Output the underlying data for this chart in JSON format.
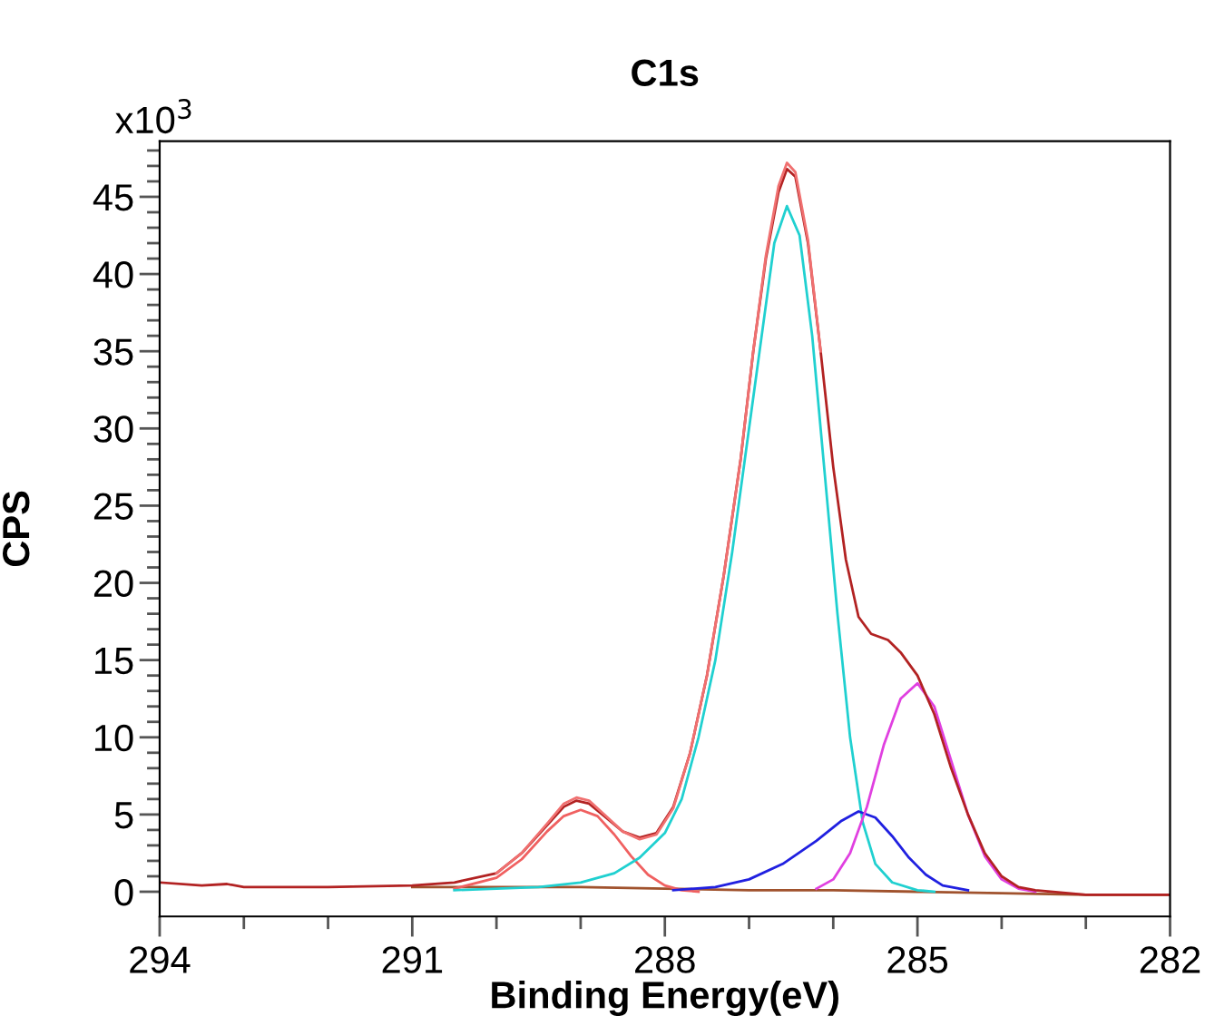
{
  "chart_data": {
    "type": "line",
    "title": "C1s",
    "xlabel": "Binding Energy(eV)",
    "ylabel": "CPS",
    "annotations": [
      "x10$^{3}$"
    ],
    "xlim": [
      294,
      282
    ],
    "ylim": [
      -1.6,
      48.6
    ],
    "xticks": [
      294,
      {
        "value": 293,
        "label": null
      },
      {
        "value": 292,
        "label": null
      },
      291,
      {
        "value": 290,
        "label": null
      },
      {
        "value": 289,
        "label": null
      },
      288,
      {
        "value": 287,
        "label": null
      },
      {
        "value": 286,
        "label": null
      },
      285,
      {
        "value": 284,
        "label": null
      },
      {
        "value": 283,
        "label": null
      },
      282
    ],
    "yticks": [
      0,
      {
        "value": 1,
        "label": null
      },
      {
        "value": 2,
        "label": null
      },
      {
        "value": 3,
        "label": null
      },
      {
        "value": 4,
        "label": null
      },
      5,
      {
        "value": 6,
        "label": null
      },
      {
        "value": 7,
        "label": null
      },
      {
        "value": 8,
        "label": null
      },
      {
        "value": 9,
        "label": null
      },
      10,
      {
        "value": 11,
        "label": null
      },
      {
        "value": 12,
        "label": null
      },
      {
        "value": 13,
        "label": null
      },
      {
        "value": 14,
        "label": null
      },
      15,
      {
        "value": 16,
        "label": null
      },
      {
        "value": 17,
        "label": null
      },
      {
        "value": 18,
        "label": null
      },
      {
        "value": 19,
        "label": null
      },
      20,
      {
        "value": 21,
        "label": null
      },
      {
        "value": 22,
        "label": null
      },
      {
        "value": 23,
        "label": null
      },
      {
        "value": 24,
        "label": null
      },
      25,
      {
        "value": 26,
        "label": null
      },
      {
        "value": 27,
        "label": null
      },
      {
        "value": 28,
        "label": null
      },
      {
        "value": 29,
        "label": null
      },
      30,
      {
        "value": 31,
        "label": null
      },
      {
        "value": 32,
        "label": null
      },
      {
        "value": 33,
        "label": null
      },
      {
        "value": 34,
        "label": null
      },
      35,
      {
        "value": 36,
        "label": null
      },
      {
        "value": 37,
        "label": null
      },
      {
        "value": 38,
        "label": null
      },
      {
        "value": 39,
        "label": null
      },
      40,
      {
        "value": 41,
        "label": null
      },
      {
        "value": 42,
        "label": null
      },
      {
        "value": 43,
        "label": null
      },
      {
        "value": 44,
        "label": null
      },
      45,
      {
        "value": 46,
        "label": null
      },
      {
        "value": 47,
        "label": null
      },
      {
        "value": 48,
        "label": null
      }
    ],
    "grid": false,
    "legend": false,
    "marker": "none",
    "line_style": "solid",
    "series": [
      {
        "color": "#a0522d",
        "x": [
          291,
          289,
          288,
          287,
          286,
          285,
          284,
          283,
          282
        ],
        "values": [
          0.3,
          0.3,
          0.2,
          0.1,
          0.1,
          0,
          -0.1,
          -0.2,
          -0.2
        ]
      },
      {
        "color": "#f06060",
        "x": [
          290.5,
          290.0,
          289.7,
          289.4,
          289.2,
          289.0,
          288.8,
          288.6,
          288.4,
          288.2,
          288.0,
          287.8,
          287.6
        ],
        "values": [
          0.2,
          0.9,
          2.1,
          3.9,
          4.9,
          5.3,
          4.9,
          3.7,
          2.3,
          1.1,
          0.4,
          0.1,
          0
        ]
      },
      {
        "color": "#20d0d0",
        "x": [
          290.5,
          289.5,
          289,
          288.6,
          288.3,
          288.0,
          287.8,
          287.6,
          287.4,
          287.2,
          287.0,
          286.85,
          286.7,
          286.55,
          286.4,
          286.25,
          286.1,
          285.95,
          285.8,
          285.65,
          285.5,
          285.3,
          285.0,
          284.8
        ],
        "values": [
          0.1,
          0.3,
          0.6,
          1.2,
          2.2,
          3.8,
          6,
          10,
          15,
          22,
          30,
          36,
          42,
          44.4,
          42.5,
          36,
          27,
          18,
          10,
          4.5,
          1.8,
          0.6,
          0.1,
          0
        ]
      },
      {
        "color": "#2020e0",
        "x": [
          287.9,
          287.4,
          287.0,
          286.6,
          286.2,
          285.9,
          285.7,
          285.5,
          285.3,
          285.1,
          284.9,
          284.7,
          284.4
        ],
        "values": [
          0.1,
          0.3,
          0.8,
          1.8,
          3.3,
          4.6,
          5.2,
          4.8,
          3.6,
          2.2,
          1.1,
          0.4,
          0.1
        ]
      },
      {
        "color": "#e040e0",
        "x": [
          286.2,
          286.0,
          285.8,
          285.6,
          285.4,
          285.2,
          285.0,
          284.8,
          284.6,
          284.4,
          284.2,
          284.0,
          283.8,
          283.6
        ],
        "values": [
          0.2,
          0.8,
          2.5,
          5.5,
          9.5,
          12.5,
          13.5,
          12,
          8.5,
          5,
          2.3,
          0.8,
          0.2,
          0
        ]
      },
      {
        "color": "#b22222",
        "x": [
          294,
          293.5,
          293.2,
          293,
          292,
          291,
          290.5,
          290,
          289.7,
          289.4,
          289.2,
          289.05,
          288.9,
          288.7,
          288.5,
          288.3,
          288.1,
          287.9,
          287.7,
          287.5,
          287.3,
          287.1,
          286.95,
          286.8,
          286.65,
          286.55,
          286.45,
          286.3,
          286.15,
          286.0,
          285.85,
          285.7,
          285.55,
          285.35,
          285.2,
          285.0,
          284.8,
          284.6,
          284.4,
          284.2,
          284.0,
          283.8,
          283.6,
          283,
          282
        ],
        "values": [
          0.6,
          0.4,
          0.5,
          0.3,
          0.3,
          0.4,
          0.6,
          1.2,
          2.5,
          4.3,
          5.5,
          5.9,
          5.7,
          4.8,
          3.9,
          3.5,
          3.8,
          5.5,
          9,
          14,
          20.5,
          28,
          35,
          41,
          45.3,
          46.8,
          46.3,
          42,
          35,
          27.5,
          21.5,
          17.8,
          16.7,
          16.3,
          15.5,
          14,
          11.5,
          8,
          5,
          2.5,
          1.0,
          0.3,
          0.1,
          -0.2,
          -0.2
        ]
      },
      {
        "color": "#f07070",
        "x": [
          290,
          289.7,
          289.4,
          289.2,
          289.05,
          288.9,
          288.7,
          288.5,
          288.3,
          288.1,
          287.9,
          287.7,
          287.5,
          287.3,
          287.1,
          286.95,
          286.8,
          286.65,
          286.55,
          286.45,
          286.3,
          286.15
        ],
        "values": [
          1.2,
          2.5,
          4.4,
          5.7,
          6.1,
          5.9,
          4.9,
          3.9,
          3.4,
          3.7,
          5.4,
          9,
          14,
          20.5,
          28,
          35,
          41.2,
          45.7,
          47.2,
          46.6,
          42.2,
          35
        ]
      }
    ]
  }
}
